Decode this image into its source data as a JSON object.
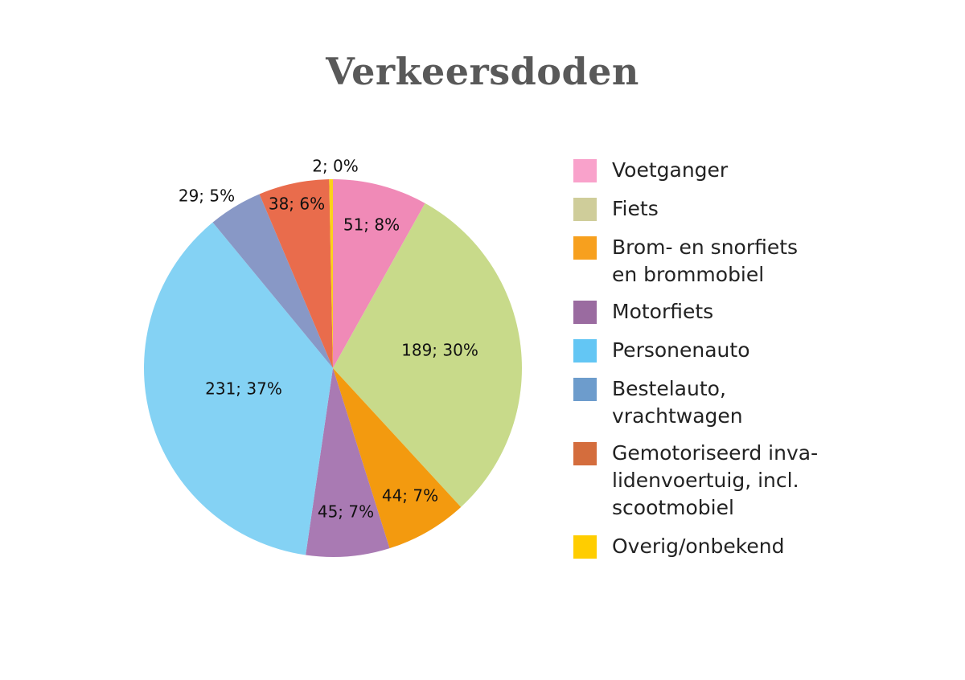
{
  "title": "Verkeersdoden",
  "chart_data": {
    "type": "pie",
    "title": "Verkeersdoden",
    "legend_position": "right",
    "slices": [
      {
        "name": "Voetganger",
        "value": 51,
        "percent": 8,
        "label": "51; 8%",
        "color": "#f08ab7",
        "legend_color": "#f9a2cb"
      },
      {
        "name": "Fiets",
        "value": 189,
        "percent": 30,
        "label": "189; 30%",
        "color": "#c8da8a",
        "legend_color": "#cfcd9a"
      },
      {
        "name": "Brom- en snorfiets en brommobiel",
        "value": 44,
        "percent": 7,
        "label": "44; 7%",
        "color": "#f39a0f",
        "legend_color": "#f7a01e"
      },
      {
        "name": "Motorfiets",
        "value": 45,
        "percent": 7,
        "label": "45; 7%",
        "color": "#a97ab3",
        "legend_color": "#9a6ba0"
      },
      {
        "name": "Personenauto",
        "value": 231,
        "percent": 37,
        "label": "231; 37%",
        "color": "#84d2f4",
        "legend_color": "#63c6f4"
      },
      {
        "name": "Bestelauto, vrachtwagen",
        "value": 29,
        "percent": 5,
        "label": "29; 5%",
        "color": "#8898c6",
        "legend_color": "#6d9ccc"
      },
      {
        "name": "Gemotoriseerd invalidenvoertuig, incl. scootmobiel",
        "value": 38,
        "percent": 6,
        "label": "38; 6%",
        "color": "#e96c4c",
        "legend_color": "#d46d3d"
      },
      {
        "name": "Overig/onbekend",
        "value": 2,
        "percent": 0,
        "label": "2; 0%",
        "color": "#fcd21a",
        "legend_color": "#ffcd00"
      }
    ]
  },
  "legend": {
    "items": [
      {
        "lines": [
          "Voetganger"
        ]
      },
      {
        "lines": [
          "Fiets"
        ]
      },
      {
        "lines": [
          "Brom- en snorfiets",
          "en brommobiel"
        ]
      },
      {
        "lines": [
          "Motorfiets"
        ]
      },
      {
        "lines": [
          "Personenauto"
        ]
      },
      {
        "lines": [
          "Bestelauto,",
          "vrachtwagen"
        ]
      },
      {
        "lines": [
          "Gemotoriseerd inva-",
          "lidenvoertuig, incl.",
          "scootmobiel"
        ]
      },
      {
        "lines": [
          "Overig/onbekend"
        ]
      }
    ]
  }
}
